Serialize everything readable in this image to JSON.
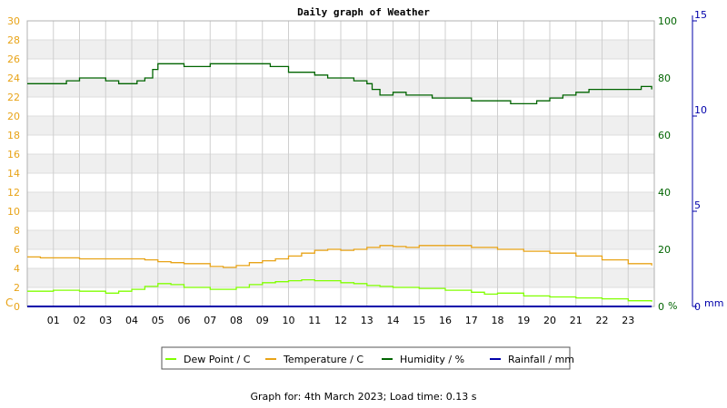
{
  "chart_data": {
    "type": "line",
    "title": "Daily graph of Weather",
    "x_ticks": [
      "01",
      "02",
      "03",
      "04",
      "05",
      "06",
      "07",
      "08",
      "09",
      "10",
      "11",
      "12",
      "13",
      "14",
      "15",
      "16",
      "17",
      "18",
      "19",
      "20",
      "21",
      "22",
      "23"
    ],
    "x_range_hours": [
      0,
      24
    ],
    "axes": {
      "left": {
        "label": "C",
        "range": [
          0,
          30
        ],
        "ticks": [
          0,
          2,
          4,
          6,
          8,
          10,
          12,
          14,
          16,
          18,
          20,
          22,
          24,
          26,
          28,
          30
        ],
        "color": "#e8a317"
      },
      "right_humidity": {
        "label": "%",
        "range": [
          0,
          100
        ],
        "ticks": [
          0,
          20,
          40,
          60,
          80,
          100
        ],
        "color": "#006400"
      },
      "right_rainfall": {
        "label": "mm",
        "range": [
          0,
          15
        ],
        "ticks": [
          0,
          5,
          10,
          15
        ],
        "color": "#0000aa"
      }
    },
    "grid": true,
    "legend_position": "bottom",
    "series": [
      {
        "name": "Dew Point / C",
        "axis": "left",
        "color": "#80ff00",
        "x": [
          0,
          1,
          2,
          3,
          3.5,
          4,
          4.5,
          5,
          5.5,
          6,
          7,
          8,
          8.5,
          9,
          9.5,
          10,
          10.5,
          11,
          12,
          12.5,
          13,
          13.5,
          14,
          15,
          16,
          17,
          17.5,
          18,
          19,
          20,
          21,
          22,
          23,
          23.9
        ],
        "y": [
          1.6,
          1.7,
          1.6,
          1.4,
          1.6,
          1.8,
          2.1,
          2.4,
          2.3,
          2.0,
          1.8,
          2.0,
          2.3,
          2.5,
          2.6,
          2.7,
          2.8,
          2.7,
          2.5,
          2.4,
          2.2,
          2.1,
          2.0,
          1.9,
          1.7,
          1.5,
          1.3,
          1.4,
          1.1,
          1.0,
          0.9,
          0.8,
          0.6,
          0.5
        ]
      },
      {
        "name": "Temperature / C",
        "axis": "left",
        "color": "#e8a317",
        "x": [
          0,
          0.5,
          1,
          2,
          3,
          4,
          4.5,
          5,
          5.5,
          6,
          7,
          7.5,
          8,
          8.5,
          9,
          9.5,
          10,
          10.5,
          11,
          11.5,
          12,
          12.5,
          13,
          13.5,
          14,
          14.5,
          15,
          16,
          17,
          18,
          19,
          20,
          21,
          22,
          23,
          23.9
        ],
        "y": [
          5.2,
          5.1,
          5.1,
          5.0,
          5.0,
          5.0,
          4.9,
          4.7,
          4.6,
          4.5,
          4.2,
          4.1,
          4.3,
          4.6,
          4.8,
          5.0,
          5.3,
          5.6,
          5.9,
          6.0,
          5.9,
          6.0,
          6.2,
          6.4,
          6.3,
          6.2,
          6.4,
          6.4,
          6.2,
          6.0,
          5.8,
          5.6,
          5.3,
          4.9,
          4.5,
          4.3
        ]
      },
      {
        "name": "Humidity / %",
        "axis": "right_humidity",
        "color": "#006400",
        "x": [
          0,
          0.5,
          1,
          1.5,
          2,
          2.5,
          3,
          3.5,
          4,
          4.2,
          4.5,
          4.8,
          5,
          5.5,
          6,
          6.3,
          6.5,
          7,
          7.5,
          8,
          8.5,
          9,
          9.3,
          9.6,
          10,
          10.5,
          11,
          11.5,
          12,
          12.5,
          12.8,
          13,
          13.2,
          13.5,
          14,
          14.5,
          15,
          15.5,
          16,
          16.5,
          17,
          17.5,
          18,
          18.5,
          19,
          19.5,
          20,
          20.5,
          21,
          21.5,
          22,
          22.5,
          23,
          23.5,
          23.9
        ],
        "y": [
          78,
          78,
          78,
          79,
          80,
          80,
          79,
          78,
          78,
          79,
          80,
          83,
          85,
          85,
          84,
          84,
          84,
          85,
          85,
          85,
          85,
          85,
          84,
          84,
          82,
          82,
          81,
          80,
          80,
          79,
          79,
          78,
          76,
          74,
          75,
          74,
          74,
          73,
          73,
          73,
          72,
          72,
          72,
          71,
          71,
          72,
          73,
          74,
          75,
          76,
          76,
          76,
          76,
          77,
          76
        ]
      },
      {
        "name": "Rainfall / mm",
        "axis": "right_rainfall",
        "color": "#0000aa",
        "x": [
          0,
          23.9
        ],
        "y": [
          0,
          0
        ]
      }
    ],
    "footer": "Graph for: 4th March 2023; Load time: 0.13 s"
  }
}
